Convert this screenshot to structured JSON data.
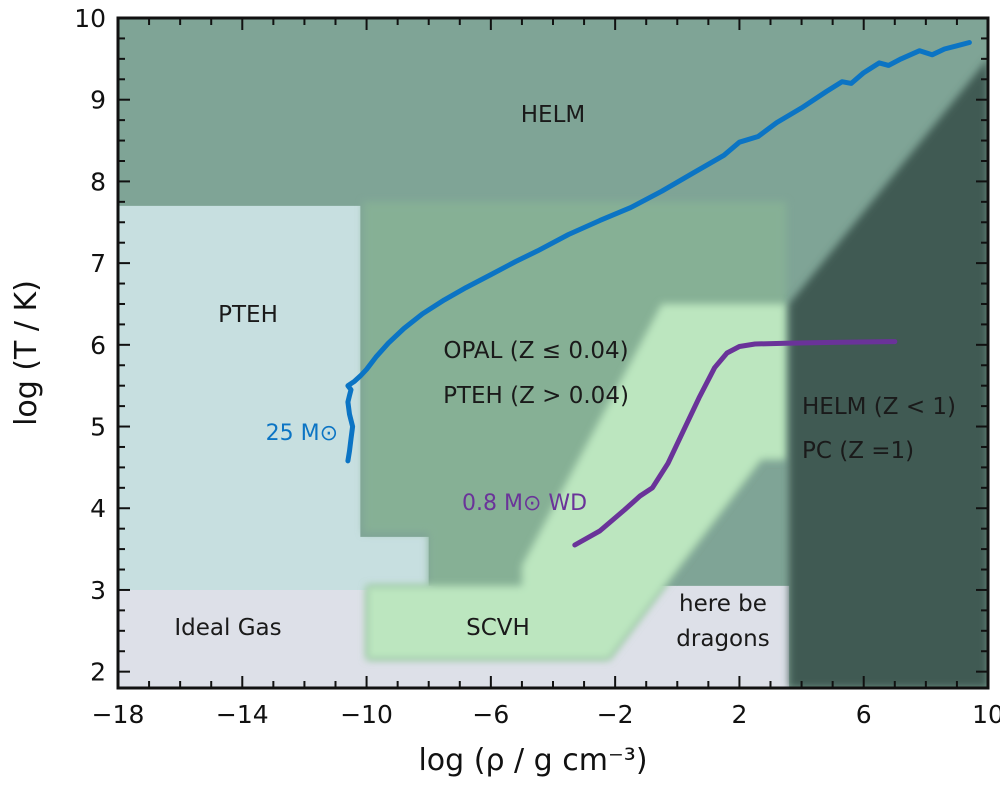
{
  "chart_data": {
    "type": "line",
    "xlabel": "log (ρ / g cm⁻³)",
    "ylabel": "log (T / K)",
    "xlim": [
      -18,
      10
    ],
    "ylim": [
      1.8,
      10
    ],
    "xticks": [
      -18,
      -14,
      -10,
      -6,
      -2,
      2,
      6,
      10
    ],
    "xtick_labels": [
      "−18",
      "−14",
      "−10",
      "−6",
      "−2",
      "2",
      "6",
      "10"
    ],
    "yticks": [
      2,
      3,
      4,
      5,
      6,
      7,
      8,
      9,
      10
    ],
    "ytick_labels": [
      "2",
      "3",
      "4",
      "5",
      "6",
      "7",
      "8",
      "9",
      "10"
    ],
    "regions": [
      {
        "name": "HELM",
        "label": "HELM",
        "color": "#7fa496",
        "polygon": [
          [
            -18,
            10
          ],
          [
            10,
            10
          ],
          [
            10,
            1.8
          ],
          [
            -18,
            1.8
          ]
        ]
      },
      {
        "name": "here be dragons",
        "label": "here be dragons",
        "color": "#dde0e8",
        "polygon": [
          [
            -18,
            3.05
          ],
          [
            3.6,
            3.05
          ],
          [
            3.6,
            1.8
          ],
          [
            -18,
            1.8
          ]
        ]
      },
      {
        "name": "PTEH",
        "label": "PTEH",
        "color": "#c7dfe0",
        "polygon": [
          [
            -18,
            7.7
          ],
          [
            -10.2,
            7.7
          ],
          [
            -10.2,
            3.65
          ],
          [
            -8.0,
            3.65
          ],
          [
            -8.0,
            3.0
          ],
          [
            -18,
            3.0
          ]
        ]
      },
      {
        "name": "OPAL",
        "label": "OPAL (Z ≤ 0.04)",
        "label2": "PTEH (Z > 0.04)",
        "color": "#86b095",
        "polygon": [
          [
            -10.1,
            7.75
          ],
          [
            3.5,
            7.75
          ],
          [
            3.5,
            4.6
          ],
          [
            2.7,
            4.6
          ],
          [
            -2.2,
            2.15
          ],
          [
            -10.0,
            2.15
          ],
          [
            -10.0,
            3.05
          ],
          [
            -8.0,
            3.05
          ],
          [
            -8.0,
            3.7
          ],
          [
            -10.1,
            3.7
          ]
        ]
      },
      {
        "name": "SCVH",
        "label": "SCVH",
        "color": "#bce6bf",
        "polygon": [
          [
            -0.5,
            6.5
          ],
          [
            3.5,
            6.5
          ],
          [
            3.5,
            4.6
          ],
          [
            2.7,
            4.6
          ],
          [
            -2.2,
            2.15
          ],
          [
            -10.0,
            2.15
          ],
          [
            -10.0,
            3.05
          ],
          [
            -5.0,
            3.05
          ],
          [
            -5.0,
            3.3
          ]
        ]
      },
      {
        "name": "HELM/PC",
        "label": "HELM (Z < 1)",
        "label2": "PC (Z =1)",
        "color": "#3f5a53",
        "polygon": [
          [
            3.6,
            6.5
          ],
          [
            10,
            9.5
          ],
          [
            10,
            1.8
          ],
          [
            3.6,
            1.8
          ]
        ]
      }
    ],
    "region_text_extra": {
      "ideal_gas": "Ideal Gas",
      "dragons_line1": "here be",
      "dragons_line2": "dragons"
    },
    "series": [
      {
        "name": "25 M⊙",
        "color": "#0b74c4",
        "x": [
          -10.6,
          -10.55,
          -10.5,
          -10.45,
          -10.55,
          -10.6,
          -10.55,
          -10.5,
          -10.6,
          -10.4,
          -10.2,
          -10.0,
          -9.7,
          -9.3,
          -8.8,
          -8.2,
          -7.5,
          -6.8,
          -6.0,
          -5.2,
          -4.5,
          -3.5,
          -2.5,
          -1.5,
          -0.5,
          0.5,
          1.5,
          2.0,
          2.6,
          3.2,
          4.0,
          4.8,
          5.3,
          5.6,
          6.0,
          6.5,
          6.8,
          7.2,
          7.5,
          7.8,
          8.2,
          8.6,
          9.0,
          9.4
        ],
        "y": [
          4.58,
          4.7,
          4.85,
          5.0,
          5.15,
          5.3,
          5.38,
          5.45,
          5.5,
          5.55,
          5.62,
          5.7,
          5.85,
          6.02,
          6.2,
          6.38,
          6.55,
          6.7,
          6.86,
          7.02,
          7.15,
          7.35,
          7.52,
          7.68,
          7.88,
          8.1,
          8.32,
          8.48,
          8.55,
          8.72,
          8.9,
          9.1,
          9.22,
          9.2,
          9.33,
          9.45,
          9.42,
          9.5,
          9.55,
          9.6,
          9.55,
          9.62,
          9.66,
          9.7
        ]
      },
      {
        "name": "0.8 M⊙ WD",
        "color": "#6a3399",
        "x": [
          -3.3,
          -2.5,
          -1.7,
          -1.2,
          -0.8,
          -0.3,
          0.2,
          0.7,
          1.2,
          1.6,
          2.0,
          2.5,
          3.5,
          5.0,
          7.0
        ],
        "y": [
          3.55,
          3.72,
          3.98,
          4.15,
          4.25,
          4.55,
          4.95,
          5.35,
          5.72,
          5.9,
          5.98,
          6.01,
          6.02,
          6.03,
          6.04
        ]
      }
    ]
  }
}
